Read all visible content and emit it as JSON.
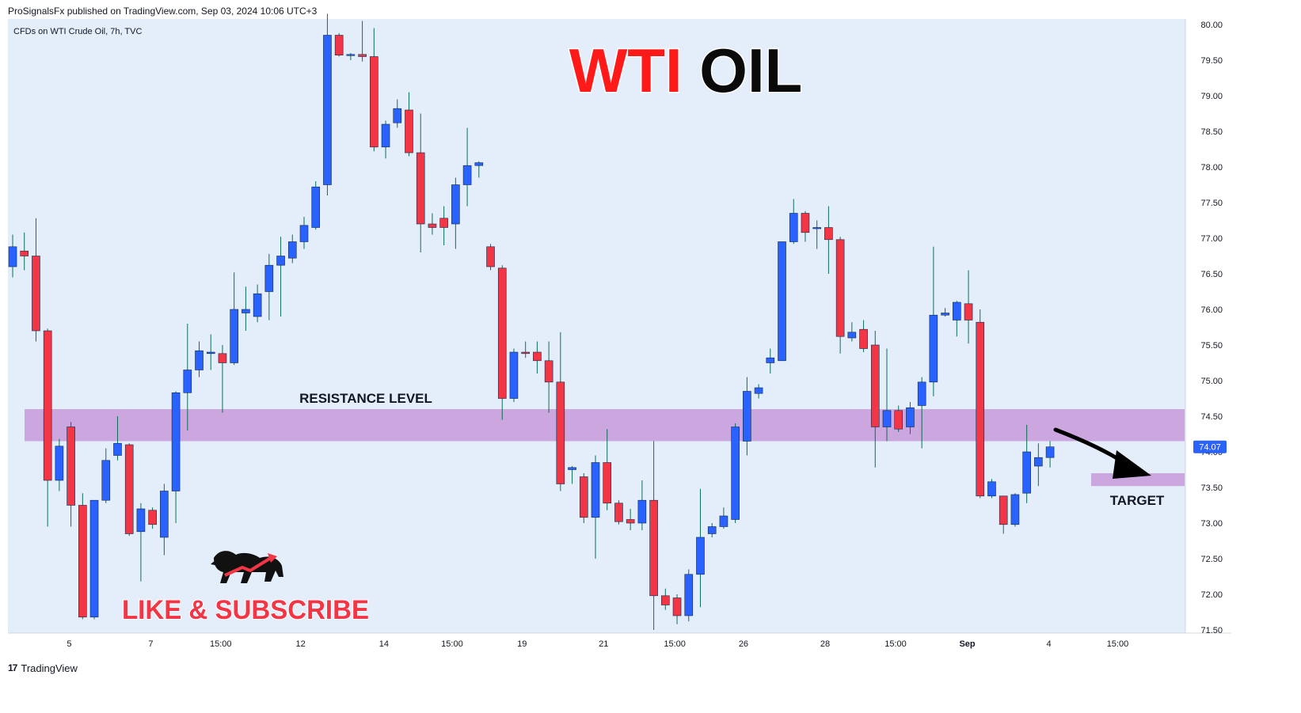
{
  "header": {
    "published": "ProSignalsFx published on TradingView.com, Sep 03, 2024 10:06 UTC+3"
  },
  "footer": {
    "brand": "TradingView",
    "logo": "tradingview-logo-icon"
  },
  "chart_data": {
    "type": "candlestick",
    "symbol_label": "CFDs on WTI Crude Oil, 7h, TVC",
    "title": "WTI OIL",
    "ylim": [
      71.5,
      80.0
    ],
    "y_ticks": [
      "80.00",
      "79.50",
      "79.00",
      "78.50",
      "78.00",
      "77.50",
      "77.00",
      "76.50",
      "76.00",
      "75.50",
      "75.00",
      "74.50",
      "74.00",
      "73.50",
      "73.00",
      "72.50",
      "72.00",
      "71.50"
    ],
    "x_ticks": [
      {
        "i": 4.85,
        "label": "5"
      },
      {
        "i": 11.85,
        "label": "7"
      },
      {
        "i": 17.85,
        "label": "15:00"
      },
      {
        "i": 24.7,
        "label": "12"
      },
      {
        "i": 31.85,
        "label": "14"
      },
      {
        "i": 37.7,
        "label": "15:00"
      },
      {
        "i": 43.7,
        "label": "19"
      },
      {
        "i": 50.7,
        "label": "21"
      },
      {
        "i": 56.8,
        "label": "15:00"
      },
      {
        "i": 62.7,
        "label": "26"
      },
      {
        "i": 69.7,
        "label": "28"
      },
      {
        "i": 75.75,
        "label": "15:00"
      },
      {
        "i": 81.9,
        "label": "Sep",
        "bold": true
      },
      {
        "i": 88.9,
        "label": "4"
      },
      {
        "i": 94.8,
        "label": "15:00"
      }
    ],
    "candles": [
      {
        "o": 76.6,
        "h": 77.05,
        "l": 76.45,
        "c": 76.88
      },
      {
        "o": 76.82,
        "h": 77.08,
        "l": 76.55,
        "c": 76.75
      },
      {
        "o": 76.75,
        "h": 77.28,
        "l": 75.55,
        "c": 75.7
      },
      {
        "o": 75.7,
        "h": 75.73,
        "l": 72.95,
        "c": 73.6
      },
      {
        "o": 73.6,
        "h": 74.18,
        "l": 73.45,
        "c": 74.08
      },
      {
        "o": 74.35,
        "h": 74.42,
        "l": 72.95,
        "c": 73.25
      },
      {
        "o": 73.25,
        "h": 73.42,
        "l": 71.65,
        "c": 71.68
      },
      {
        "o": 71.68,
        "h": 73.32,
        "l": 71.65,
        "c": 73.32
      },
      {
        "o": 73.32,
        "h": 74.05,
        "l": 73.28,
        "c": 73.88
      },
      {
        "o": 73.95,
        "h": 74.5,
        "l": 73.88,
        "c": 74.12
      },
      {
        "o": 74.1,
        "h": 74.12,
        "l": 72.82,
        "c": 72.85
      },
      {
        "o": 72.88,
        "h": 73.28,
        "l": 72.18,
        "c": 73.2
      },
      {
        "o": 73.18,
        "h": 73.22,
        "l": 72.92,
        "c": 72.98
      },
      {
        "o": 72.8,
        "h": 73.55,
        "l": 72.55,
        "c": 73.45
      },
      {
        "o": 73.45,
        "h": 74.85,
        "l": 73.0,
        "c": 74.83
      },
      {
        "o": 74.83,
        "h": 75.8,
        "l": 74.3,
        "c": 75.15
      },
      {
        "o": 75.15,
        "h": 75.55,
        "l": 75.05,
        "c": 75.42
      },
      {
        "o": 75.38,
        "h": 75.65,
        "l": 75.15,
        "c": 75.4
      },
      {
        "o": 75.38,
        "h": 75.5,
        "l": 74.55,
        "c": 75.25
      },
      {
        "o": 75.25,
        "h": 76.52,
        "l": 75.22,
        "c": 76.0
      },
      {
        "o": 75.95,
        "h": 76.32,
        "l": 75.7,
        "c": 76.0
      },
      {
        "o": 75.9,
        "h": 76.35,
        "l": 75.82,
        "c": 76.22
      },
      {
        "o": 76.25,
        "h": 76.78,
        "l": 75.85,
        "c": 76.62
      },
      {
        "o": 76.62,
        "h": 77.02,
        "l": 75.9,
        "c": 76.75
      },
      {
        "o": 76.72,
        "h": 77.05,
        "l": 76.65,
        "c": 76.95
      },
      {
        "o": 76.95,
        "h": 77.3,
        "l": 76.85,
        "c": 77.18
      },
      {
        "o": 77.15,
        "h": 77.8,
        "l": 77.12,
        "c": 77.72
      },
      {
        "o": 77.75,
        "h": 80.15,
        "l": 77.6,
        "c": 79.85
      },
      {
        "o": 79.85,
        "h": 79.88,
        "l": 79.55,
        "c": 79.57
      },
      {
        "o": 79.58,
        "h": 79.6,
        "l": 79.5,
        "c": 79.58
      },
      {
        "o": 79.58,
        "h": 80.05,
        "l": 79.48,
        "c": 79.55
      },
      {
        "o": 79.55,
        "h": 79.95,
        "l": 78.22,
        "c": 78.28
      },
      {
        "o": 78.28,
        "h": 78.65,
        "l": 78.12,
        "c": 78.6
      },
      {
        "o": 78.62,
        "h": 78.95,
        "l": 78.55,
        "c": 78.82
      },
      {
        "o": 78.8,
        "h": 79.05,
        "l": 78.15,
        "c": 78.2
      },
      {
        "o": 78.2,
        "h": 78.75,
        "l": 76.8,
        "c": 77.2
      },
      {
        "o": 77.2,
        "h": 77.35,
        "l": 77.05,
        "c": 77.15
      },
      {
        "o": 77.28,
        "h": 77.45,
        "l": 76.9,
        "c": 77.15
      },
      {
        "o": 77.2,
        "h": 77.85,
        "l": 76.85,
        "c": 77.75
      },
      {
        "o": 77.75,
        "h": 78.55,
        "l": 77.45,
        "c": 78.02
      },
      {
        "o": 78.02,
        "h": 78.08,
        "l": 77.85,
        "c": 78.06
      },
      {
        "o": 76.88,
        "h": 76.92,
        "l": 76.55,
        "c": 76.6
      },
      {
        "o": 76.58,
        "h": 76.62,
        "l": 74.45,
        "c": 74.75
      },
      {
        "o": 74.75,
        "h": 75.45,
        "l": 74.7,
        "c": 75.4
      },
      {
        "o": 75.4,
        "h": 75.55,
        "l": 75.32,
        "c": 75.38
      },
      {
        "o": 75.4,
        "h": 75.55,
        "l": 75.1,
        "c": 75.28
      },
      {
        "o": 75.28,
        "h": 75.55,
        "l": 74.55,
        "c": 74.98
      },
      {
        "o": 74.98,
        "h": 75.68,
        "l": 73.45,
        "c": 73.55
      },
      {
        "o": 73.75,
        "h": 73.8,
        "l": 73.55,
        "c": 73.78
      },
      {
        "o": 73.65,
        "h": 73.7,
        "l": 73.0,
        "c": 73.08
      },
      {
        "o": 73.08,
        "h": 73.95,
        "l": 72.5,
        "c": 73.85
      },
      {
        "o": 73.85,
        "h": 74.32,
        "l": 73.18,
        "c": 73.28
      },
      {
        "o": 73.28,
        "h": 73.32,
        "l": 72.98,
        "c": 73.02
      },
      {
        "o": 73.05,
        "h": 73.2,
        "l": 72.9,
        "c": 73.0
      },
      {
        "o": 73.0,
        "h": 73.6,
        "l": 72.9,
        "c": 73.32
      },
      {
        "o": 73.32,
        "h": 74.15,
        "l": 71.5,
        "c": 71.98
      },
      {
        "o": 71.98,
        "h": 72.08,
        "l": 71.78,
        "c": 71.85
      },
      {
        "o": 71.95,
        "h": 72.0,
        "l": 71.58,
        "c": 71.7
      },
      {
        "o": 71.7,
        "h": 72.35,
        "l": 71.62,
        "c": 72.28
      },
      {
        "o": 72.28,
        "h": 73.48,
        "l": 71.82,
        "c": 72.8
      },
      {
        "o": 72.85,
        "h": 73.0,
        "l": 72.8,
        "c": 72.95
      },
      {
        "o": 72.95,
        "h": 73.22,
        "l": 72.92,
        "c": 73.1
      },
      {
        "o": 73.05,
        "h": 74.4,
        "l": 73.0,
        "c": 74.35
      },
      {
        "o": 74.15,
        "h": 75.05,
        "l": 73.95,
        "c": 74.85
      },
      {
        "o": 74.82,
        "h": 74.95,
        "l": 74.75,
        "c": 74.9
      },
      {
        "o": 75.25,
        "h": 75.45,
        "l": 75.1,
        "c": 75.32
      },
      {
        "o": 75.28,
        "h": 76.95,
        "l": 75.28,
        "c": 76.95
      },
      {
        "o": 76.95,
        "h": 77.55,
        "l": 76.92,
        "c": 77.35
      },
      {
        "o": 77.35,
        "h": 77.38,
        "l": 76.95,
        "c": 77.08
      },
      {
        "o": 77.15,
        "h": 77.25,
        "l": 76.85,
        "c": 77.15
      },
      {
        "o": 77.15,
        "h": 77.45,
        "l": 76.5,
        "c": 76.98
      },
      {
        "o": 76.98,
        "h": 77.02,
        "l": 75.38,
        "c": 75.62
      },
      {
        "o": 75.6,
        "h": 75.82,
        "l": 75.55,
        "c": 75.68
      },
      {
        "o": 75.72,
        "h": 75.85,
        "l": 75.4,
        "c": 75.45
      },
      {
        "o": 75.5,
        "h": 75.7,
        "l": 73.78,
        "c": 74.35
      },
      {
        "o": 74.35,
        "h": 75.45,
        "l": 74.15,
        "c": 74.58
      },
      {
        "o": 74.58,
        "h": 74.65,
        "l": 74.28,
        "c": 74.32
      },
      {
        "o": 74.35,
        "h": 74.7,
        "l": 74.25,
        "c": 74.62
      },
      {
        "o": 74.65,
        "h": 75.05,
        "l": 74.05,
        "c": 74.98
      },
      {
        "o": 74.98,
        "h": 76.88,
        "l": 74.78,
        "c": 75.92
      },
      {
        "o": 75.92,
        "h": 76.02,
        "l": 75.9,
        "c": 75.95
      },
      {
        "o": 75.85,
        "h": 76.12,
        "l": 75.62,
        "c": 76.1
      },
      {
        "o": 76.08,
        "h": 76.55,
        "l": 75.52,
        "c": 75.85
      },
      {
        "o": 75.82,
        "h": 76.0,
        "l": 73.35,
        "c": 73.38
      },
      {
        "o": 73.38,
        "h": 73.62,
        "l": 73.35,
        "c": 73.58
      },
      {
        "o": 73.38,
        "h": 73.38,
        "l": 72.85,
        "c": 72.98
      },
      {
        "o": 72.98,
        "h": 73.42,
        "l": 72.95,
        "c": 73.4
      },
      {
        "o": 73.42,
        "h": 74.38,
        "l": 73.28,
        "c": 74.0
      },
      {
        "o": 73.8,
        "h": 74.12,
        "l": 73.52,
        "c": 73.92
      },
      {
        "o": 73.92,
        "h": 74.15,
        "l": 73.78,
        "c": 74.07
      }
    ],
    "last_price": "74.07",
    "resistance_zone": {
      "low": 74.15,
      "high": 74.6,
      "label": "RESISTANCE LEVEL"
    },
    "target_zone": {
      "low": 73.52,
      "high": 73.7,
      "label": "TARGET"
    },
    "promo_text": "LIKE & SUBSCRIBE",
    "colors": {
      "bg": "#e3eefa",
      "up": "#2962ff",
      "down": "#f23645",
      "zone": "#cba6df",
      "wick": "#0d6e55",
      "title_red": "#ff1a1a",
      "title_black": "#0a0a0a"
    }
  }
}
